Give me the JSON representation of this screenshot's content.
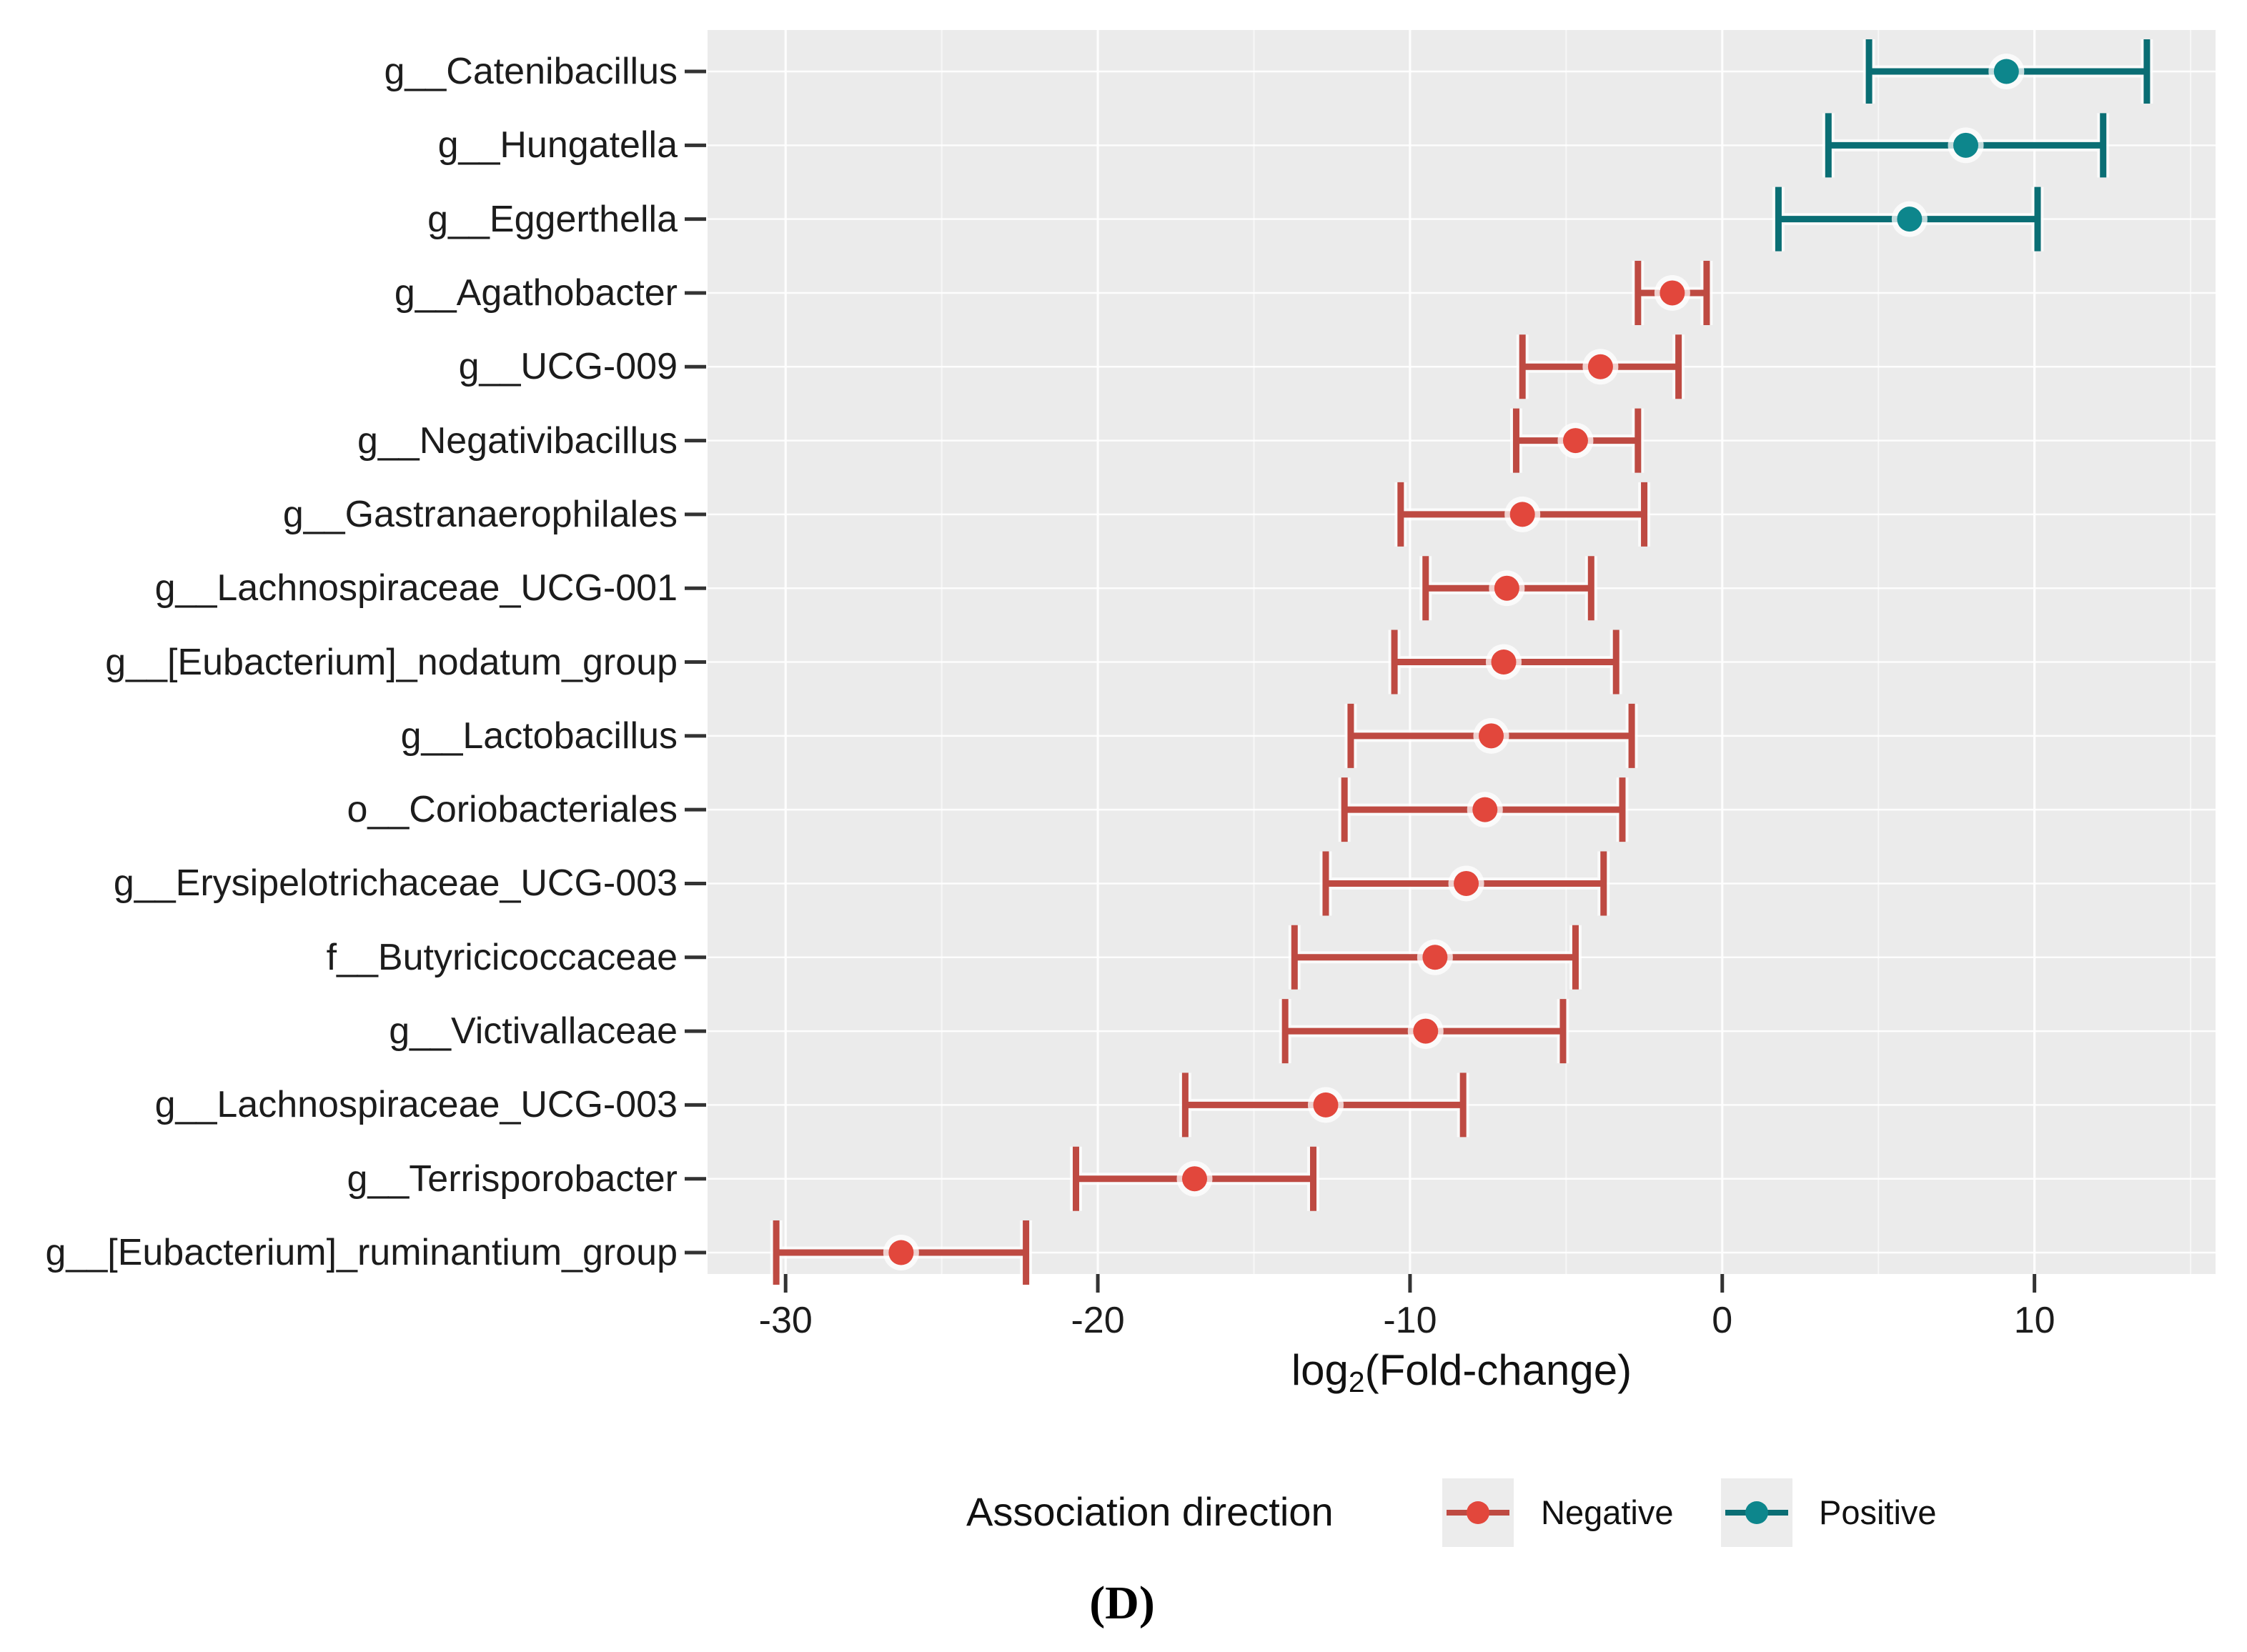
{
  "figure": {
    "caption": "(D)"
  },
  "axis": {
    "x_title_prefix": "log",
    "x_title_sub": "2",
    "x_title_suffix": "(Fold-change)",
    "tick_labels": [
      "-30",
      "-20",
      "-10",
      "0",
      "10"
    ]
  },
  "legend": {
    "title": "Association direction",
    "entries": [
      {
        "label": "Negative",
        "point_color": "#E2473C",
        "line_color": "#BE4A42"
      },
      {
        "label": "Positive",
        "point_color": "#0D868C",
        "line_color": "#0A6E74"
      }
    ]
  },
  "chart_data": {
    "type": "scatter",
    "subtype": "horizontal_error_bar_forest_plot",
    "title": "",
    "xlabel": "log2(Fold-change)",
    "ylabel": "",
    "xlim": [
      -32.5,
      15.8
    ],
    "x_major_ticks": [
      -30,
      -20,
      -10,
      0,
      10
    ],
    "x_minor_gridlines": [
      -25,
      -15,
      -5,
      5,
      15
    ],
    "grid": true,
    "legend_position": "bottom",
    "panel_background": "#EBEBEB",
    "gridline_color": "#FFFFFF",
    "colors": {
      "Negative": {
        "point": "#E2473C",
        "line": "#BE4A42"
      },
      "Positive": {
        "point": "#0D868C",
        "line": "#0A6E74"
      }
    },
    "rows": [
      {
        "label": "g__Catenibacillus",
        "direction": "Positive",
        "low": 4.7,
        "mid": 9.1,
        "high": 13.6
      },
      {
        "label": "g__Hungatella",
        "direction": "Positive",
        "low": 3.4,
        "mid": 7.8,
        "high": 12.2
      },
      {
        "label": "g__Eggerthella",
        "direction": "Positive",
        "low": 1.8,
        "mid": 6.0,
        "high": 10.1
      },
      {
        "label": "g__Agathobacter",
        "direction": "Negative",
        "low": -2.7,
        "mid": -1.6,
        "high": -0.5
      },
      {
        "label": "g__UCG-009",
        "direction": "Negative",
        "low": -6.4,
        "mid": -3.9,
        "high": -1.4
      },
      {
        "label": "g__Negativibacillus",
        "direction": "Negative",
        "low": -6.6,
        "mid": -4.7,
        "high": -2.7
      },
      {
        "label": "g__Gastranaerophilales",
        "direction": "Negative",
        "low": -10.3,
        "mid": -6.4,
        "high": -2.5
      },
      {
        "label": "g__Lachnospiraceae_UCG-001",
        "direction": "Negative",
        "low": -9.5,
        "mid": -6.9,
        "high": -4.2
      },
      {
        "label": "g__[Eubacterium]_nodatum_group",
        "direction": "Negative",
        "low": -10.5,
        "mid": -7.0,
        "high": -3.4
      },
      {
        "label": "g__Lactobacillus",
        "direction": "Negative",
        "low": -11.9,
        "mid": -7.4,
        "high": -2.9
      },
      {
        "label": "o__Coriobacteriales",
        "direction": "Negative",
        "low": -12.1,
        "mid": -7.6,
        "high": -3.2
      },
      {
        "label": "g__Erysipelotrichaceae_UCG-003",
        "direction": "Negative",
        "low": -12.7,
        "mid": -8.2,
        "high": -3.8
      },
      {
        "label": "f__Butyricicoccaceae",
        "direction": "Negative",
        "low": -13.7,
        "mid": -9.2,
        "high": -4.7
      },
      {
        "label": "g__Victivallaceae",
        "direction": "Negative",
        "low": -14.0,
        "mid": -9.5,
        "high": -5.1
      },
      {
        "label": "g__Lachnospiraceae_UCG-003",
        "direction": "Negative",
        "low": -17.2,
        "mid": -12.7,
        "high": -8.3
      },
      {
        "label": "g__Terrisporobacter",
        "direction": "Negative",
        "low": -20.7,
        "mid": -16.9,
        "high": -13.1
      },
      {
        "label": "g__[Eubacterium]_ruminantium_group",
        "direction": "Negative",
        "low": -30.3,
        "mid": -26.3,
        "high": -22.3
      }
    ]
  }
}
